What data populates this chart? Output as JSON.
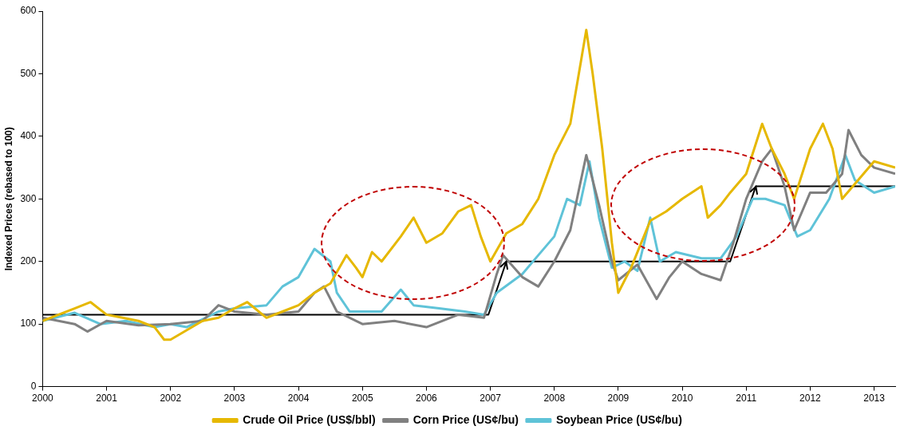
{
  "chart_data": {
    "type": "line",
    "ylabel": "Indexed Prices (rebased to 100)",
    "xlim": [
      2000,
      2013.33
    ],
    "xticks": [
      2000,
      2001,
      2002,
      2003,
      2004,
      2005,
      2006,
      2007,
      2008,
      2009,
      2010,
      2011,
      2012,
      2013
    ],
    "ylim": [
      0,
      600
    ],
    "yticks": [
      0,
      100,
      200,
      300,
      400,
      500,
      600
    ],
    "grid": false,
    "legend": "bottom",
    "marker": "none",
    "line_style": "solid",
    "series": [
      {
        "name": "Crude Oil Price (US$/bbl)",
        "color": "#e6b800",
        "x": [
          2000,
          2000.25,
          2000.5,
          2000.75,
          2001,
          2001.25,
          2001.5,
          2001.75,
          2001.9,
          2002,
          2002.25,
          2002.5,
          2002.75,
          2003,
          2003.2,
          2003.5,
          2003.75,
          2004,
          2004.25,
          2004.5,
          2004.75,
          2004.9,
          2005,
          2005.15,
          2005.3,
          2005.6,
          2005.8,
          2006,
          2006.25,
          2006.5,
          2006.7,
          2006.85,
          2007,
          2007.25,
          2007.5,
          2007.75,
          2008,
          2008.25,
          2008.5,
          2008.6,
          2008.75,
          2008.9,
          2009,
          2009.2,
          2009.4,
          2009.5,
          2009.75,
          2010,
          2010.3,
          2010.4,
          2010.6,
          2010.75,
          2011,
          2011.25,
          2011.4,
          2011.6,
          2011.75,
          2012,
          2012.2,
          2012.35,
          2012.5,
          2012.75,
          2013,
          2013.33
        ],
        "values": [
          105,
          115,
          125,
          135,
          115,
          110,
          105,
          95,
          75,
          75,
          90,
          105,
          110,
          125,
          135,
          110,
          120,
          130,
          150,
          165,
          210,
          190,
          175,
          215,
          200,
          240,
          270,
          230,
          245,
          280,
          290,
          240,
          200,
          245,
          260,
          300,
          370,
          420,
          570,
          500,
          380,
          230,
          150,
          190,
          240,
          265,
          280,
          300,
          320,
          270,
          290,
          310,
          340,
          420,
          380,
          340,
          300,
          380,
          420,
          380,
          300,
          330,
          360,
          350
        ]
      },
      {
        "name": "Corn Price (US¢/bu)",
        "color": "#808080",
        "x": [
          2000,
          2000.5,
          2000.7,
          2001,
          2001.5,
          2002,
          2002.5,
          2002.75,
          2003,
          2003.5,
          2004,
          2004.25,
          2004.4,
          2004.6,
          2005,
          2005.5,
          2006,
          2006.5,
          2006.9,
          2007.1,
          2007.2,
          2007.5,
          2007.75,
          2008,
          2008.25,
          2008.5,
          2008.7,
          2008.9,
          2009,
          2009.3,
          2009.6,
          2009.8,
          2010,
          2010.3,
          2010.6,
          2010.8,
          2011,
          2011.25,
          2011.4,
          2011.6,
          2011.75,
          2012,
          2012.25,
          2012.5,
          2012.6,
          2012.8,
          2013,
          2013.33
        ],
        "values": [
          110,
          100,
          88,
          105,
          98,
          100,
          105,
          130,
          120,
          115,
          120,
          150,
          160,
          120,
          100,
          105,
          95,
          115,
          110,
          180,
          210,
          175,
          160,
          200,
          250,
          370,
          290,
          200,
          170,
          195,
          140,
          175,
          200,
          180,
          170,
          230,
          300,
          360,
          380,
          320,
          250,
          310,
          310,
          340,
          410,
          370,
          350,
          340
        ]
      },
      {
        "name": "Soybean Price (US¢/bu)",
        "color": "#5fc3d8",
        "x": [
          2000,
          2000.5,
          2000.9,
          2001.3,
          2001.75,
          2002,
          2002.25,
          2002.75,
          2003,
          2003.5,
          2003.75,
          2004,
          2004.25,
          2004.5,
          2004.6,
          2004.8,
          2005.3,
          2005.6,
          2005.8,
          2006.2,
          2006.6,
          2006.9,
          2007.1,
          2007.5,
          2007.75,
          2008,
          2008.2,
          2008.4,
          2008.55,
          2008.7,
          2008.9,
          2009.1,
          2009.3,
          2009.5,
          2009.65,
          2009.9,
          2010.3,
          2010.6,
          2010.85,
          2011.1,
          2011.3,
          2011.6,
          2011.8,
          2012,
          2012.3,
          2012.55,
          2012.7,
          2013,
          2013.33
        ],
        "values": [
          105,
          118,
          100,
          105,
          95,
          100,
          95,
          120,
          125,
          130,
          160,
          175,
          220,
          200,
          150,
          120,
          120,
          155,
          130,
          125,
          120,
          115,
          150,
          180,
          210,
          240,
          300,
          290,
          360,
          270,
          190,
          200,
          185,
          270,
          200,
          215,
          205,
          205,
          240,
          300,
          300,
          290,
          240,
          250,
          300,
          370,
          330,
          310,
          320
        ]
      },
      {
        "color": "#000000",
        "x": [
          2000,
          2006.97,
          2007.25,
          2010.75,
          2011.15,
          2013.33
        ],
        "values": [
          115,
          115,
          200,
          200,
          320,
          320
        ]
      }
    ]
  }
}
